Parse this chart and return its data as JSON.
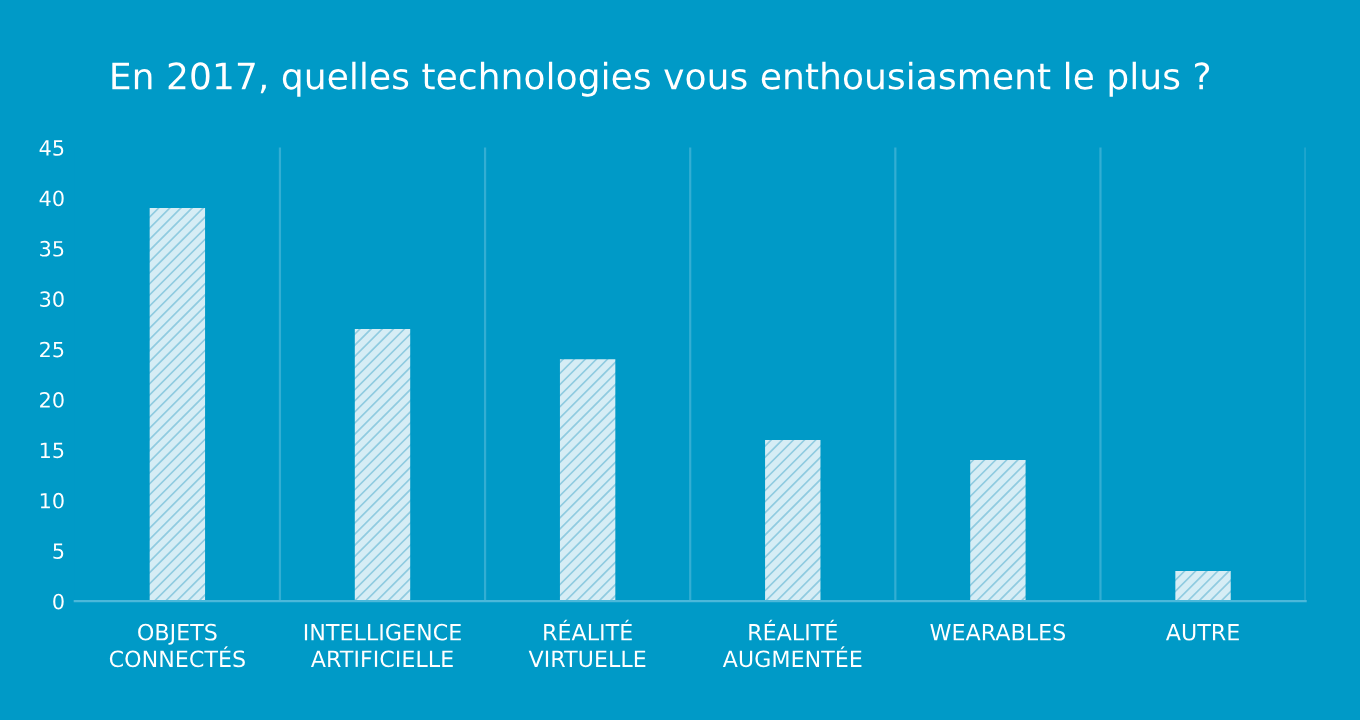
{
  "chart_data": {
    "type": "bar",
    "title": "En 2017, quelles technologies vous enthousiasment le plus ?",
    "categories": [
      "OBJETS\nCONNECTÉS",
      "INTELLIGENCE\nARTIFICIELLE",
      "RÉALITÉ\nVIRTUELLE",
      "RÉALITÉ\nAUGMENTÉE",
      "WEARABLES",
      "AUTRE"
    ],
    "values": [
      39,
      27,
      24,
      16,
      14,
      3
    ],
    "color": "#d6edf5",
    "ylim": [
      0,
      45
    ],
    "yticks": [
      0,
      5,
      10,
      15,
      20,
      25,
      30,
      35,
      40,
      45
    ],
    "grid": "x"
  }
}
